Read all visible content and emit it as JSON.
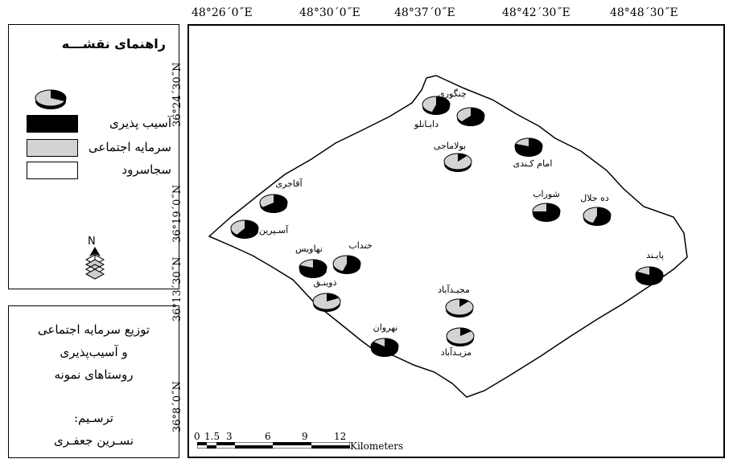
{
  "legend": {
    "title": "راهنمای نقشـــه",
    "items": [
      {
        "label": "آسیب پذیری",
        "color": "#000000"
      },
      {
        "label": "سرمایه اجتماعی",
        "color": "#d3d3d3"
      },
      {
        "label": "سجاسرود",
        "color": "#ffffff"
      }
    ],
    "north_label": "N"
  },
  "info": {
    "line1": "توزیع سرمایه اجتماعی",
    "line2": "و آسیب‌پذیری",
    "line3": "روستاهای نمونه",
    "line4": "ترسـیم:",
    "line5": "نسـرین جعفـری"
  },
  "longitudes": [
    "48°26´0˝E",
    "48°30´0˝E",
    "48°37´0˝E",
    "48°42´30˝E",
    "48°48´30˝E"
  ],
  "latitudes": [
    "36°24´30˝N",
    "36°19´0˝N",
    "36°13´30˝N",
    "36°8´0˝N"
  ],
  "scale": {
    "ticks": [
      "0",
      "1.5",
      "3",
      "6",
      "9",
      "12"
    ],
    "unit": "Kilometers"
  },
  "villages": [
    {
      "name": "چنگوری",
      "vulnerability": 0.55
    },
    {
      "name": "دابـانلو",
      "vulnerability": 0.62
    },
    {
      "name": "بولاماجی",
      "vulnerability": 0.12
    },
    {
      "name": "امام کـندی",
      "vulnerability": 0.8
    },
    {
      "name": "آقاجری",
      "vulnerability": 0.65
    },
    {
      "name": "آسـپرین",
      "vulnerability": 0.6
    },
    {
      "name": "شوراب",
      "vulnerability": 0.75
    },
    {
      "name": "ده جلال",
      "vulnerability": 0.55
    },
    {
      "name": "خنداب",
      "vulnerability": 0.55
    },
    {
      "name": "نهاویس",
      "vulnerability": 0.8
    },
    {
      "name": "ذوینـق",
      "vulnerability": 0.18
    },
    {
      "name": "پایـند",
      "vulnerability": 0.82
    },
    {
      "name": "مجیـدآباد",
      "vulnerability": 0.12
    },
    {
      "name": "نهروان",
      "vulnerability": 0.85
    },
    {
      "name": "مزیـدآباد",
      "vulnerability": 0.15
    }
  ]
}
